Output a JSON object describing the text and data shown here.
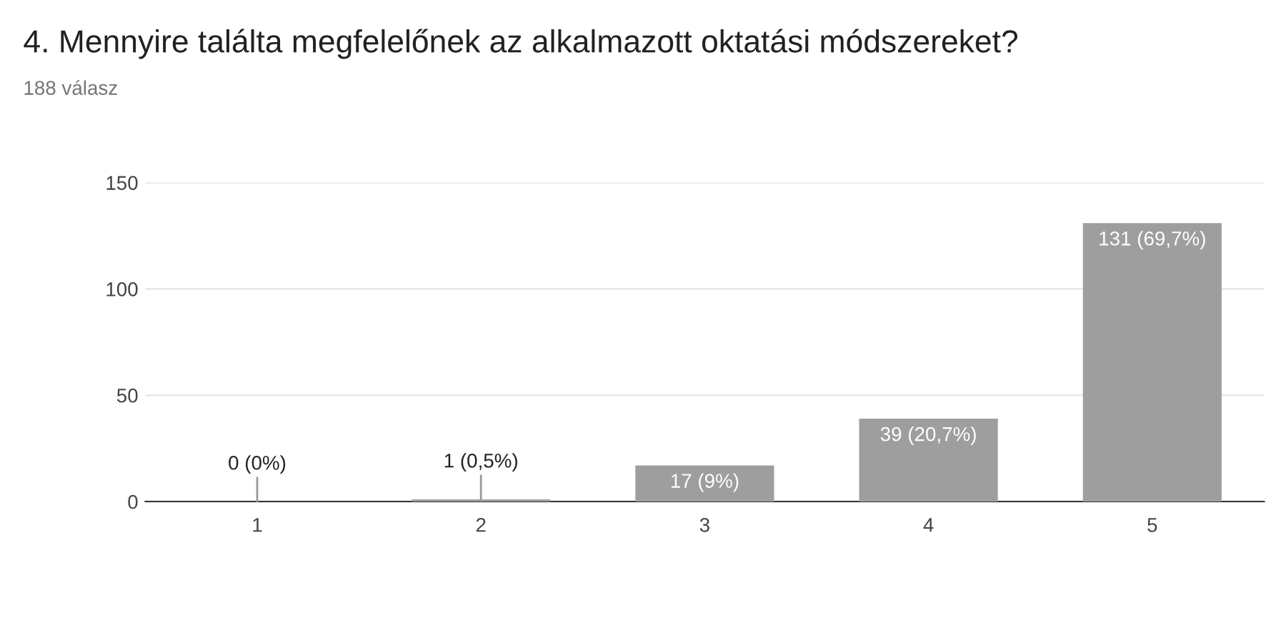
{
  "chart_data": {
    "type": "bar",
    "title": "4. Mennyire találta megfelelőnek az alkalmazott oktatási módszereket?",
    "subtitle": "188 válasz",
    "categories": [
      "1",
      "2",
      "3",
      "4",
      "5"
    ],
    "values": [
      0,
      1,
      17,
      39,
      131
    ],
    "value_labels": [
      "0 (0%)",
      "1 (0,5%)",
      "17 (9%)",
      "39 (20,7%)",
      "131 (69,7%)"
    ],
    "color": "#9e9e9e",
    "ylim": [
      0,
      150
    ],
    "yticks": [
      0,
      50,
      100,
      150
    ],
    "grid": "y"
  }
}
